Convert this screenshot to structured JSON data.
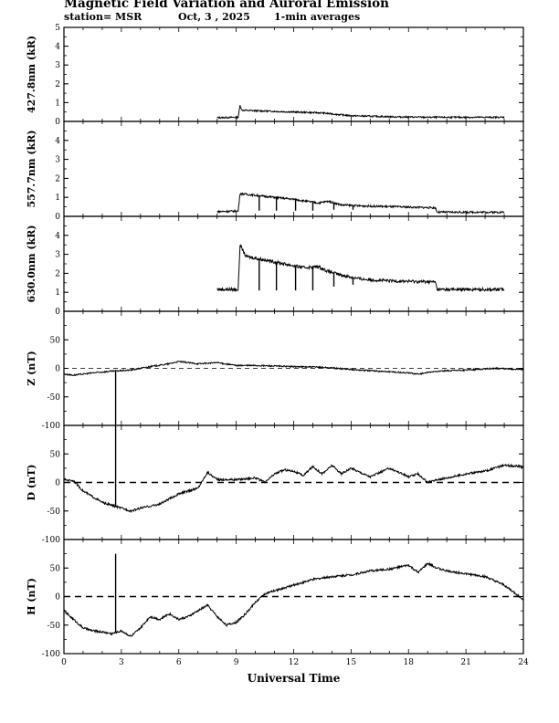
{
  "header": {
    "title": "Magnetic Field Variation and Auroral Emission",
    "station": "station= MSR",
    "date": "Oct, 3  , 2025",
    "averaging": "1-min averages"
  },
  "chart_data": [
    {
      "type": "line",
      "name": "427.8nm",
      "ylabel": "427.8nm (kR)",
      "ylim": [
        0,
        5
      ],
      "yticks": [
        0,
        1,
        2,
        3,
        4,
        5
      ],
      "x_start": 8.0,
      "x_end": 23.0,
      "x": [
        8.0,
        9.1,
        9.2,
        9.3,
        9.6,
        10.5,
        12.0,
        13.5,
        15.0,
        17.0,
        19.0,
        21.0,
        23.0
      ],
      "values": [
        0.2,
        0.22,
        0.85,
        0.6,
        0.58,
        0.55,
        0.5,
        0.45,
        0.3,
        0.25,
        0.22,
        0.22,
        0.22
      ],
      "noise": 0.04,
      "spikes": []
    },
    {
      "type": "line",
      "name": "557.7nm",
      "ylabel": "557.7nm (kR)",
      "ylim": [
        0,
        5
      ],
      "yticks": [
        0,
        1,
        2,
        3,
        4
      ],
      "x_start": 8.0,
      "x_end": 23.0,
      "x": [
        8.0,
        9.1,
        9.2,
        10.5,
        12.0,
        13.3,
        13.8,
        14.5,
        15.5,
        17.5,
        19.4,
        19.5,
        23.0
      ],
      "values": [
        0.25,
        0.28,
        1.2,
        1.05,
        0.9,
        0.7,
        0.8,
        0.6,
        0.55,
        0.5,
        0.45,
        0.22,
        0.22
      ],
      "noise": 0.05,
      "spikes": [
        {
          "x": 10.2,
          "y": 0.3
        },
        {
          "x": 11.1,
          "y": 0.3
        },
        {
          "x": 12.1,
          "y": 0.3
        },
        {
          "x": 13.0,
          "y": 0.3
        },
        {
          "x": 14.1,
          "y": 0.35
        },
        {
          "x": 15.1,
          "y": 0.35
        }
      ]
    },
    {
      "type": "line",
      "name": "630.0nm",
      "ylabel": "630.0nm (kR)",
      "ylim": [
        0,
        5
      ],
      "yticks": [
        0,
        1,
        2,
        3,
        4
      ],
      "x_start": 8.0,
      "x_end": 23.0,
      "x": [
        8.0,
        9.1,
        9.2,
        9.5,
        10.5,
        11.5,
        12.5,
        13.3,
        13.8,
        14.5,
        15.5,
        17.0,
        19.4,
        19.5,
        23.0
      ],
      "values": [
        1.15,
        1.15,
        3.5,
        2.9,
        2.7,
        2.5,
        2.3,
        2.35,
        2.1,
        1.9,
        1.7,
        1.6,
        1.55,
        1.15,
        1.15
      ],
      "noise": 0.08,
      "spikes": [
        {
          "x": 10.2,
          "y": 1.1
        },
        {
          "x": 11.1,
          "y": 1.1
        },
        {
          "x": 12.1,
          "y": 1.1
        },
        {
          "x": 13.0,
          "y": 1.1
        },
        {
          "x": 14.1,
          "y": 1.3
        },
        {
          "x": 15.1,
          "y": 1.4
        }
      ]
    },
    {
      "type": "line",
      "name": "Z",
      "ylabel": "Z (nT)",
      "ylim": [
        -100,
        100
      ],
      "yticks": [
        -100,
        -50,
        0,
        50
      ],
      "zero_line": "dashed-thin",
      "x_start": 0,
      "x_end": 24,
      "x": [
        0,
        0.5,
        1.5,
        2.5,
        3.5,
        4.5,
        5.5,
        6.0,
        7.0,
        8.0,
        9.0,
        10.0,
        12.0,
        13.5,
        15.0,
        16.5,
        18.0,
        18.5,
        19.5,
        21.0,
        22.5,
        24.0
      ],
      "values": [
        -10,
        -12,
        -8,
        -5,
        -3,
        3,
        8,
        12,
        8,
        10,
        5,
        5,
        3,
        2,
        -2,
        -5,
        -8,
        -10,
        -5,
        -3,
        0,
        -2
      ],
      "noise": 1.2,
      "spikes": [
        {
          "x": 2.7,
          "y": -100
        }
      ]
    },
    {
      "type": "line",
      "name": "D",
      "ylabel": "D (nT)",
      "ylim": [
        -100,
        100
      ],
      "yticks": [
        -100,
        -50,
        0,
        50
      ],
      "zero_line": "dashed-thick",
      "x_start": 0,
      "x_end": 24,
      "x": [
        0,
        0.5,
        1.0,
        1.5,
        2.0,
        2.7,
        3.0,
        3.5,
        4.0,
        5.0,
        6.0,
        7.0,
        7.5,
        8.0,
        9.0,
        10.0,
        10.5,
        11.0,
        11.5,
        12.0,
        12.5,
        13.0,
        13.5,
        14.0,
        14.5,
        15.0,
        16.0,
        17.0,
        17.5,
        18.0,
        18.5,
        19.0,
        19.5,
        20.0,
        21.0,
        22.0,
        23.0,
        24.0
      ],
      "values": [
        5,
        3,
        -15,
        -25,
        -35,
        -42,
        -45,
        -50,
        -45,
        -38,
        -20,
        -10,
        18,
        5,
        5,
        8,
        0,
        15,
        22,
        20,
        12,
        28,
        15,
        30,
        15,
        25,
        10,
        25,
        18,
        10,
        15,
        0,
        5,
        8,
        15,
        20,
        30,
        28
      ],
      "noise": 1.8,
      "spikes": [
        {
          "x": 2.7,
          "y": 100
        }
      ]
    },
    {
      "type": "line",
      "name": "H",
      "ylabel": "H (nT)",
      "ylim": [
        -100,
        100
      ],
      "yticks": [
        -100,
        -50,
        0,
        50
      ],
      "zero_line": "dashed-thick",
      "x_start": 0,
      "x_end": 24,
      "x": [
        0,
        0.5,
        1.0,
        1.5,
        2.0,
        2.5,
        3.0,
        3.5,
        4.0,
        4.5,
        5.0,
        5.5,
        6.0,
        6.5,
        7.0,
        7.5,
        8.0,
        8.5,
        9.0,
        9.5,
        10.0,
        10.5,
        11.0,
        12.0,
        13.0,
        14.0,
        15.0,
        16.0,
        17.0,
        18.0,
        18.5,
        19.0,
        19.5,
        20.0,
        21.0,
        22.0,
        23.0,
        24.0
      ],
      "values": [
        -25,
        -40,
        -55,
        -60,
        -62,
        -65,
        -60,
        -70,
        -55,
        -35,
        -40,
        -30,
        -40,
        -35,
        -25,
        -15,
        -35,
        -50,
        -45,
        -30,
        -10,
        5,
        10,
        20,
        30,
        35,
        38,
        45,
        48,
        55,
        42,
        58,
        50,
        45,
        40,
        35,
        20,
        -5
      ],
      "noise": 1.8,
      "spikes": [
        {
          "x": 2.7,
          "y": 75
        }
      ]
    }
  ],
  "x_axis": {
    "label": "Universal Time",
    "range": [
      0,
      24
    ],
    "ticks": [
      0,
      3,
      6,
      9,
      12,
      15,
      18,
      21,
      24
    ]
  }
}
